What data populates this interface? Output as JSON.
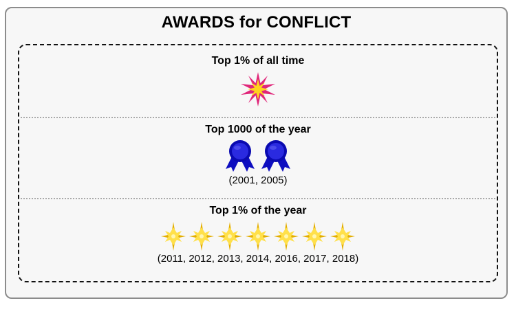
{
  "header": {
    "title": "AWARDS for CONFLICT"
  },
  "sections": [
    {
      "title": "Top 1% of all time",
      "icon": "starburst-icon",
      "count": 1,
      "years": ""
    },
    {
      "title": "Top 1000 of the year",
      "icon": "ribbon-award-icon",
      "count": 2,
      "years": "(2001, 2005)"
    },
    {
      "title": "Top 1% of the year",
      "icon": "gold-star-icon",
      "count": 7,
      "years": "(2011, 2012, 2013, 2014, 2016, 2017, 2018)"
    }
  ],
  "colors": {
    "card_background": "#f7f7f7",
    "card_border": "#8c8c8c",
    "starburst_outer": "#e0267a",
    "starburst_inner": "#ffd21e",
    "ribbon_blue": "#1414c8",
    "gold_star": "#f2c200"
  }
}
